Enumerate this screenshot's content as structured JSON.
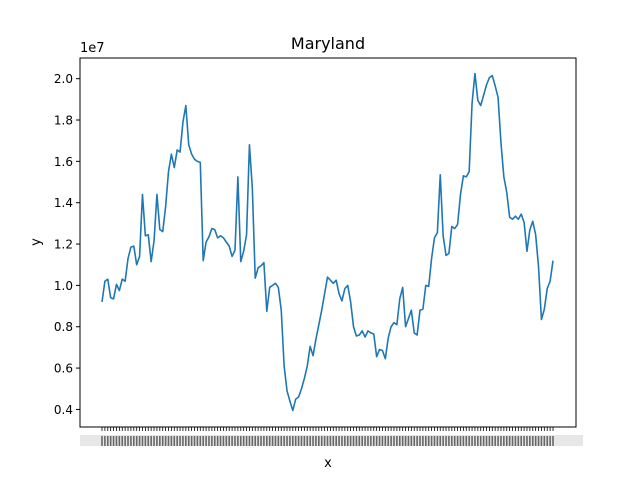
{
  "chart_data": {
    "type": "line",
    "title": "Maryland",
    "xlabel": "x",
    "ylabel": "y",
    "y_offset_label": "1e7",
    "ylim": [
      3150000,
      21000000
    ],
    "yticks": [
      4000000,
      6000000,
      8000000,
      10000000,
      12000000,
      14000000,
      16000000,
      18000000,
      20000000
    ],
    "ytick_labels": [
      "0.4",
      "0.6",
      "0.8",
      "1.0",
      "1.2",
      "1.4",
      "1.6",
      "1.8",
      "2.0"
    ],
    "grid": false,
    "line_color": "#1f77b4",
    "xtick_labels_illegible": true,
    "series": [
      {
        "values": [
          9200000,
          10200000,
          10300000,
          9400000,
          9350000,
          10050000,
          9750000,
          10300000,
          10200000,
          11300000,
          11850000,
          11900000,
          11000000,
          11400000,
          14400000,
          12400000,
          12450000,
          11150000,
          12150000,
          14400000,
          12700000,
          12600000,
          13800000,
          15500000,
          16350000,
          15700000,
          16550000,
          16450000,
          17900000,
          18700000,
          16800000,
          16350000,
          16100000,
          16000000,
          15950000,
          11200000,
          12100000,
          12350000,
          12750000,
          12700000,
          12300000,
          12400000,
          12300000,
          12100000,
          11900000,
          11400000,
          11700000,
          15250000,
          11150000,
          11650000,
          12450000,
          16800000,
          14700000,
          10350000,
          10850000,
          10950000,
          11100000,
          8750000,
          9900000,
          10000000,
          10100000,
          9900000,
          8800000,
          6100000,
          4900000,
          4400000,
          3950000,
          4500000,
          4600000,
          5000000,
          5500000,
          6100000,
          7050000,
          6600000,
          7400000,
          8100000,
          8800000,
          9600000,
          10400000,
          10250000,
          10100000,
          10250000,
          9600000,
          9250000,
          9850000,
          10000000,
          9200000,
          8000000,
          7550000,
          7600000,
          7800000,
          7500000,
          7800000,
          7700000,
          7650000,
          6550000,
          6900000,
          6850000,
          6450000,
          7450000,
          8000000,
          8200000,
          8100000,
          9350000,
          9900000,
          8000000,
          8400000,
          8800000,
          7700000,
          7600000,
          8800000,
          8850000,
          10000000,
          9950000,
          11300000,
          12300000,
          12550000,
          15350000,
          12400000,
          11450000,
          11550000,
          12850000,
          12750000,
          12950000,
          14400000,
          15300000,
          15250000,
          15500000,
          18800000,
          20250000,
          18950000,
          18700000,
          19200000,
          19700000,
          20050000,
          20150000,
          19650000,
          19100000,
          16900000,
          15250000,
          14500000,
          13300000,
          13200000,
          13350000,
          13200000,
          13450000,
          13050000,
          11650000,
          12700000,
          13100000,
          12450000,
          10900000,
          8350000,
          8850000,
          9850000,
          10200000,
          11200000
        ]
      }
    ]
  }
}
